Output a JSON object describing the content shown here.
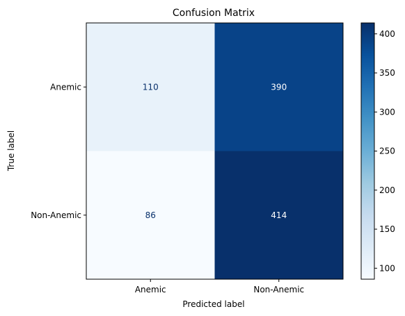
{
  "chart_data": {
    "type": "heatmap",
    "title": "Confusion Matrix",
    "xlabel": "Predicted label",
    "ylabel": "True label",
    "x_categories": [
      "Anemic",
      "Non-Anemic"
    ],
    "y_categories": [
      "Anemic",
      "Non-Anemic"
    ],
    "values": [
      [
        110,
        390
      ],
      [
        86,
        414
      ]
    ],
    "colormap": "Blues",
    "colorbar": {
      "min": 86,
      "max": 414,
      "ticks": [
        100,
        150,
        200,
        250,
        300,
        350,
        400
      ]
    }
  }
}
